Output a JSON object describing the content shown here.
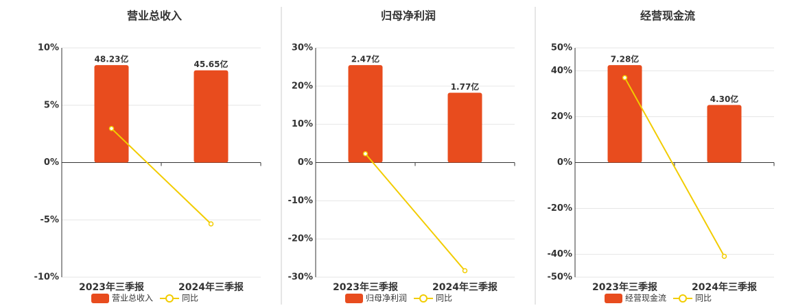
{
  "chart_data": [
    {
      "type": "bar",
      "title": "营业总收入",
      "categories": [
        "2023年三季报",
        "2024年三季报"
      ],
      "series": [
        {
          "name": "营业总收入",
          "color": "#e84c1e",
          "values": [
            48.23,
            45.65
          ],
          "value_labels": [
            "48.23亿",
            "45.65亿"
          ]
        },
        {
          "name": "同比",
          "type": "line",
          "color": "#f2cc00",
          "values": [
            2.97,
            -5.35
          ]
        }
      ],
      "ylim": [
        -10,
        10
      ],
      "yticks": [
        {
          "value": -10,
          "label": "-10%"
        },
        {
          "value": -5,
          "label": "-5%"
        },
        {
          "value": 0,
          "label": "0%"
        },
        {
          "value": 5,
          "label": "5%"
        },
        {
          "value": 10,
          "label": "10%"
        }
      ],
      "grid": true
    },
    {
      "type": "bar",
      "title": "归母净利润",
      "categories": [
        "2023年三季报",
        "2024年三季报"
      ],
      "series": [
        {
          "name": "归母净利润",
          "color": "#e84c1e",
          "values": [
            2.47,
            1.77
          ],
          "value_labels": [
            "2.47亿",
            "1.77亿"
          ]
        },
        {
          "name": "同比",
          "type": "line",
          "color": "#f2cc00",
          "values": [
            2.3,
            -28.3
          ]
        }
      ],
      "ylim": [
        -30,
        30
      ],
      "yticks": [
        {
          "value": -30,
          "label": "-30%"
        },
        {
          "value": -20,
          "label": "-20%"
        },
        {
          "value": -10,
          "label": "-10%"
        },
        {
          "value": 0,
          "label": "0%"
        },
        {
          "value": 10,
          "label": "10%"
        },
        {
          "value": 20,
          "label": "20%"
        },
        {
          "value": 30,
          "label": "30%"
        }
      ],
      "grid": true
    },
    {
      "type": "bar",
      "title": "经营现金流",
      "categories": [
        "2023年三季报",
        "2024年三季报"
      ],
      "series": [
        {
          "name": "经营现金流",
          "color": "#e84c1e",
          "values": [
            7.28,
            4.3
          ],
          "value_labels": [
            "7.28亿",
            "4.30亿"
          ]
        },
        {
          "name": "同比",
          "type": "line",
          "color": "#f2cc00",
          "values": [
            37.0,
            -40.9
          ]
        }
      ],
      "ylim": [
        -50,
        50
      ],
      "yticks": [
        {
          "value": -50,
          "label": "-50%"
        },
        {
          "value": -40,
          "label": "-40%"
        },
        {
          "value": -20,
          "label": "-20%"
        },
        {
          "value": 0,
          "label": "0%"
        },
        {
          "value": 20,
          "label": "20%"
        },
        {
          "value": 40,
          "label": "40%"
        },
        {
          "value": 50,
          "label": "50%"
        }
      ],
      "grid": true
    }
  ]
}
